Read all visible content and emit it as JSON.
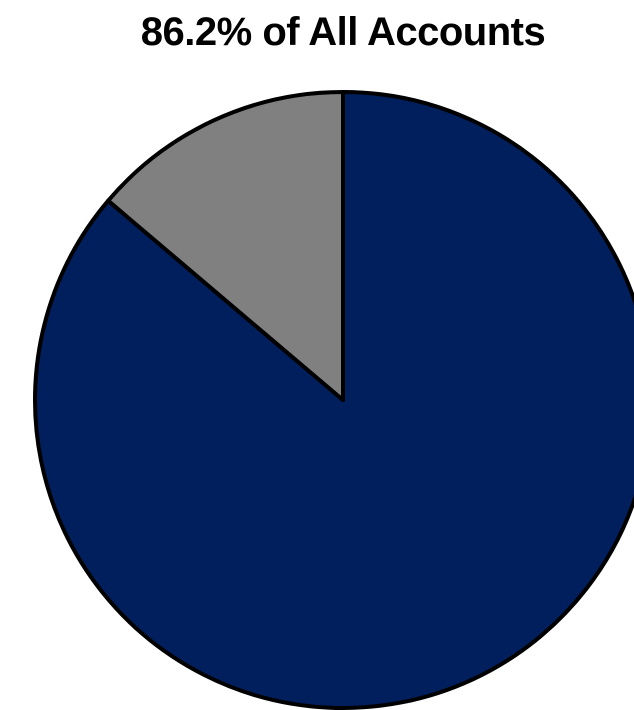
{
  "chart_data": {
    "type": "pie",
    "title": "86.2% of All Accounts",
    "slices": [
      {
        "value": 86.2,
        "color": "#001f5c"
      },
      {
        "value": 13.8,
        "color": "#808080"
      }
    ],
    "start": "12 o'clock",
    "direction": "clockwise",
    "outline_color": "#000000"
  }
}
